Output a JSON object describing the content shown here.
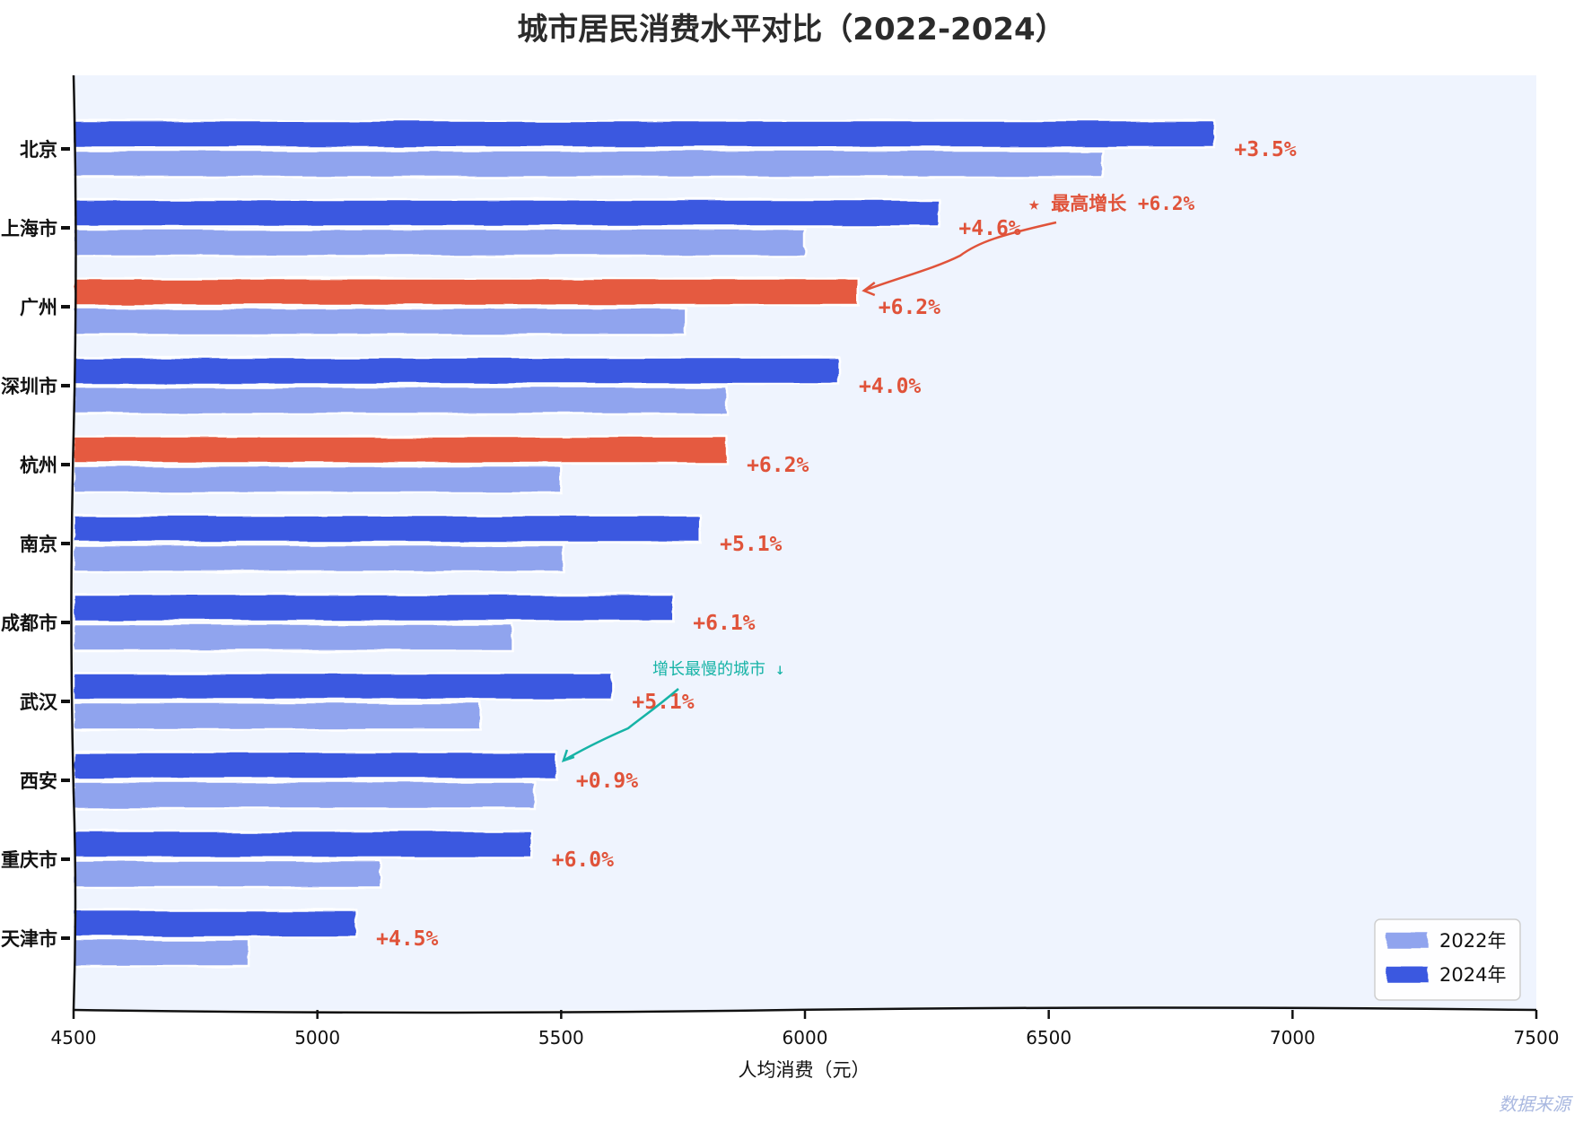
{
  "chart_data": {
    "type": "bar",
    "orientation": "horizontal",
    "title": "城市居民消费水平对比（2022-2024）",
    "xlabel": "人均消费（元）",
    "ylabel": "",
    "xlim": [
      4500,
      7500
    ],
    "xticks": [
      4500,
      5000,
      5500,
      6000,
      6500,
      7000,
      7500
    ],
    "categories": [
      "北京",
      "上海市",
      "广州",
      "深圳市",
      "杭州",
      "南京",
      "成都市",
      "武汉",
      "西安",
      "重庆市",
      "天津市"
    ],
    "series": [
      {
        "name": "2022年",
        "color": "#90a4ee",
        "values": [
          6610,
          6000,
          5755,
          5840,
          5500,
          5505,
          5400,
          5335,
          5445,
          5130,
          4860
        ]
      },
      {
        "name": "2024年",
        "color": "#3a58e0",
        "values": [
          6840,
          6275,
          6110,
          6070,
          5840,
          5785,
          5730,
          5605,
          5490,
          5440,
          5080
        ]
      }
    ],
    "highlight": {
      "categories": [
        "广州",
        "杭州"
      ],
      "color": "#e55a40"
    },
    "growth_labels": [
      "+3.5%",
      "+4.6%",
      "+6.2%",
      "+4.0%",
      "+6.2%",
      "+5.1%",
      "+6.1%",
      "+5.1%",
      "+0.9%",
      "+6.0%",
      "+4.5%"
    ],
    "annotations": [
      {
        "text": "★ 最高增长 +6.2%",
        "target_category": "广州",
        "target_value": 6110,
        "color": "#e0533a"
      },
      {
        "text": "增长最慢的城市 ↓",
        "target_category": "西安",
        "target_value": 5490,
        "color": "#16b3a6"
      }
    ],
    "legend": {
      "position": "bottom-right",
      "entries": [
        "2022年",
        "2024年"
      ]
    },
    "background": "#eff4fe",
    "grid": false
  },
  "watermark": "数据来源"
}
